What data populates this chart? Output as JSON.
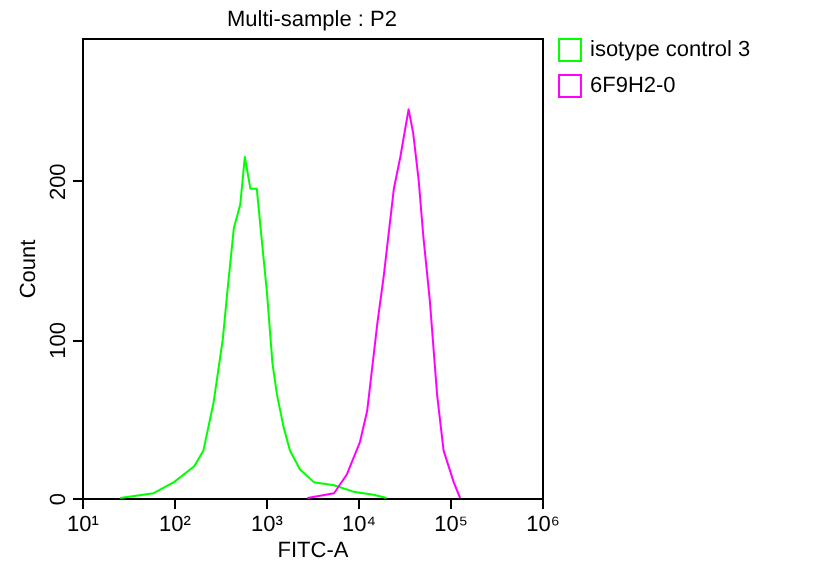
{
  "chart_data": {
    "type": "line",
    "title": "Multi-sample : P2",
    "xlabel": "FITC-A",
    "ylabel": "Count",
    "log": "x",
    "xlim": [
      10,
      1000000
    ],
    "xticks": [
      {
        "value": 10,
        "label": "10¹"
      },
      {
        "value": 100,
        "label": "10²"
      },
      {
        "value": 1000,
        "label": "10³"
      },
      {
        "value": 10000,
        "label": "10⁴"
      },
      {
        "value": 100000,
        "label": "10⁵"
      },
      {
        "value": 1000000,
        "label": "10⁶"
      }
    ],
    "ylim": [
      0,
      290
    ],
    "yticks": [
      0,
      100,
      200
    ],
    "grid": false,
    "legend": "top right",
    "marker": "none",
    "line_style": "solid",
    "series": [
      {
        "name": "isotype control 3",
        "color": "#00ff00",
        "x": [
          26,
          60,
          100,
          166,
          209,
          269,
          339,
          380,
          447,
          525,
          589,
          676,
          794,
          891,
          1023,
          1175,
          1318,
          1549,
          1820,
          2344,
          3311,
          5495,
          8913,
          14791,
          20417
        ],
        "values": [
          0,
          3,
          10,
          20,
          30,
          60,
          100,
          130,
          170,
          185,
          215,
          195,
          195,
          165,
          130,
          85,
          65,
          45,
          30,
          18,
          10,
          8,
          4,
          2,
          0
        ]
      },
      {
        "name": "6F9H2-0",
        "color": "#ff00ff",
        "x": [
          2818,
          5495,
          7586,
          10471,
          12589,
          16218,
          19055,
          24547,
          28840,
          35481,
          39811,
          45709,
          51286,
          60256,
          72444,
          85114,
          109648,
          128825
        ],
        "values": [
          0,
          3,
          15,
          35,
          55,
          110,
          140,
          195,
          215,
          245,
          230,
          200,
          165,
          125,
          65,
          30,
          10,
          0
        ]
      }
    ]
  }
}
